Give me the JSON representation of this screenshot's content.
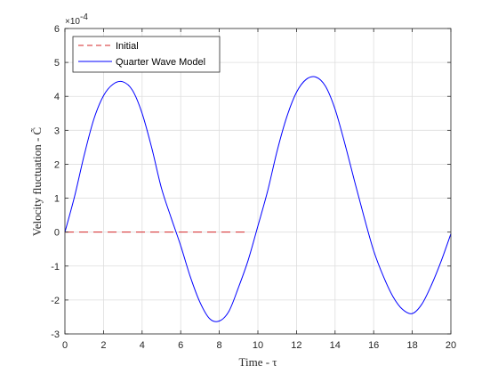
{
  "chart_data": {
    "type": "line",
    "xlabel": "Time - τ",
    "ylabel": "Velocity fluctuation - C̃",
    "exponent_base": "×10",
    "exponent_power": "-4",
    "xlim": [
      0,
      20
    ],
    "ylim": [
      -3,
      6
    ],
    "xticks": [
      0,
      2,
      4,
      6,
      8,
      10,
      12,
      14,
      16,
      18,
      20
    ],
    "yticks": [
      -3,
      -2,
      -1,
      0,
      1,
      2,
      3,
      4,
      5,
      6
    ],
    "grid": true,
    "legend_position": "top-left",
    "series": [
      {
        "name": "Initial",
        "style": "dashed",
        "color": "#d62728",
        "x": [
          0,
          9.4
        ],
        "y": [
          0,
          0
        ]
      },
      {
        "name": "Quarter Wave Model",
        "style": "solid",
        "color": "#0000ff",
        "x": [
          0,
          0.5,
          1,
          1.5,
          2,
          2.5,
          3,
          3.5,
          4,
          4.5,
          5,
          5.5,
          6,
          6.5,
          7,
          7.5,
          8,
          8.5,
          9,
          9.5,
          10,
          10.5,
          11,
          11.5,
          12,
          12.5,
          13,
          13.5,
          14,
          14.5,
          15,
          15.5,
          16,
          16.5,
          17,
          17.5,
          18,
          18.5,
          19,
          19.5,
          20
        ],
        "y": [
          0,
          1.05,
          2.27,
          3.33,
          4.02,
          4.36,
          4.43,
          4.18,
          3.5,
          2.48,
          1.3,
          0.43,
          -0.4,
          -1.32,
          -2.07,
          -2.55,
          -2.62,
          -2.33,
          -1.62,
          -0.82,
          0.18,
          1.2,
          2.4,
          3.4,
          4.12,
          4.5,
          4.57,
          4.3,
          3.62,
          2.62,
          1.52,
          0.45,
          -0.55,
          -1.3,
          -1.9,
          -2.28,
          -2.4,
          -2.12,
          -1.55,
          -0.85,
          -0.05
        ]
      }
    ]
  }
}
